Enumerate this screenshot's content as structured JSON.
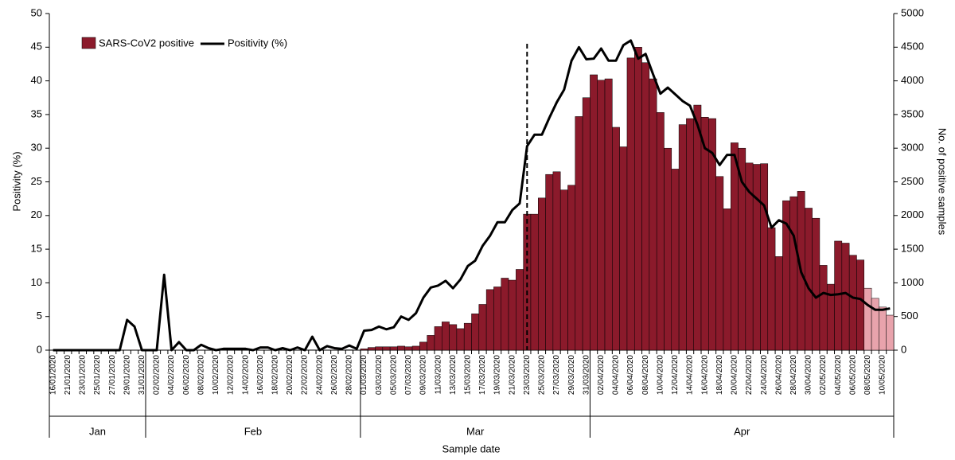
{
  "chart_data": {
    "type": "bar",
    "categories": [
      "16/01/2020",
      null,
      "21/01/2020",
      null,
      "23/01/2020",
      null,
      "25/01/2020",
      null,
      "27/01/2020",
      null,
      "29/01/2020",
      null,
      "31/01/2020",
      null,
      "02/02/2020",
      null,
      "04/02/2020",
      null,
      "06/02/2020",
      null,
      "08/02/2020",
      null,
      "10/02/2020",
      null,
      "12/02/2020",
      null,
      "14/02/2020",
      null,
      "16/02/2020",
      null,
      "18/02/2020",
      null,
      "20/02/2020",
      null,
      "22/02/2020",
      null,
      "24/02/2020",
      null,
      "26/02/2020",
      null,
      "28/02/2020",
      null,
      "01/03/2020",
      null,
      "03/03/2020",
      null,
      "05/03/2020",
      null,
      "07/03/2020",
      null,
      "09/03/2020",
      null,
      "11/03/2020",
      null,
      "13/03/2020",
      null,
      "15/03/2020",
      null,
      "17/03/2020",
      null,
      "19/03/2020",
      null,
      "21/03/2020",
      null,
      "23/03/2020",
      null,
      "25/03/2020",
      null,
      "27/03/2020",
      null,
      "29/03/2020",
      null,
      "31/03/2020",
      null,
      "02/04/2020",
      null,
      "04/04/2020",
      null,
      "06/04/2020",
      null,
      "08/04/2020",
      null,
      "10/04/2020",
      null,
      "12/04/2020",
      null,
      "14/04/2020",
      null,
      "16/04/2020",
      null,
      "18/04/2020",
      null,
      "20/04/2020",
      null,
      "22/04/2020",
      null,
      "24/04/2020",
      null,
      "26/04/2020",
      null,
      "28/04/2020",
      null,
      "30/04/2020",
      null,
      "02/05/2020",
      null,
      "04/05/2020",
      null,
      "06/05/2020",
      null,
      "08/05/2020",
      null,
      "10/05/2020",
      null
    ],
    "month_groups": [
      "Jan",
      "Feb",
      "Mar",
      "Apr"
    ],
    "xlabel": "Sample date",
    "ylabel": "Positivity (%)",
    "y2label": "No. of positive samples",
    "ylim": [
      0,
      50
    ],
    "yticks": [
      0,
      5,
      10,
      15,
      20,
      25,
      30,
      35,
      40,
      45,
      50
    ],
    "y2lim": [
      0,
      5000
    ],
    "y2ticks": [
      0,
      500,
      1000,
      1500,
      2000,
      2500,
      3000,
      3500,
      4000,
      4500,
      5000
    ],
    "legend": "top-left",
    "vline": "23/03/2020",
    "series": [
      {
        "name": "SARS-CoV2 positive",
        "type": "bar",
        "axis": "y2",
        "color": "#8b1a2b",
        "highlight": {
          "from": "08/05/2020",
          "color": "#e8a3ac"
        },
        "values": [
          0,
          0,
          0,
          0,
          0,
          0,
          0,
          0,
          0,
          0,
          2,
          2,
          0,
          0,
          0,
          2,
          0,
          1,
          0,
          0,
          1,
          1,
          0,
          1,
          1,
          1,
          1,
          0,
          2,
          2,
          0,
          1,
          0,
          2,
          0,
          4,
          0,
          3,
          2,
          2,
          5,
          3,
          20,
          40,
          50,
          50,
          50,
          60,
          50,
          60,
          120,
          220,
          350,
          420,
          380,
          320,
          400,
          540,
          680,
          900,
          940,
          1070,
          1040,
          1200,
          2020,
          2020,
          2260,
          2610,
          2650,
          2380,
          2450,
          3470,
          3750,
          4090,
          4010,
          4030,
          3310,
          3020,
          4340,
          4500,
          4270,
          4030,
          3530,
          3000,
          2690,
          3350,
          3440,
          3640,
          3460,
          3440,
          2580,
          2100,
          3080,
          3000,
          2780,
          2760,
          2770,
          1820,
          1390,
          2220,
          2280,
          2360,
          2110,
          1960,
          1260,
          980,
          1620,
          1590,
          1410,
          1340,
          920,
          770,
          640,
          520
        ]
      },
      {
        "name": "Positivity (%)",
        "type": "line",
        "color": "#000000",
        "values": [
          0,
          0,
          0,
          0,
          0,
          0,
          0,
          0,
          0,
          0,
          4.5,
          3.5,
          0,
          0,
          0,
          11.2,
          0,
          1.2,
          0,
          0,
          0.8,
          0.3,
          0,
          0.2,
          0.2,
          0.2,
          0.2,
          0,
          0.4,
          0.4,
          0,
          0.3,
          0,
          0.4,
          0,
          2.0,
          0,
          0.6,
          0.3,
          0.2,
          0.7,
          0.2,
          2.9,
          3.0,
          3.5,
          3.1,
          3.4,
          5.0,
          4.5,
          5.5,
          7.8,
          9.3,
          9.6,
          10.3,
          9.2,
          10.5,
          12.5,
          13.3,
          15.5,
          17.0,
          19.0,
          19.0,
          20.8,
          21.8,
          30.3,
          32.0,
          32.0,
          34.5,
          36.8,
          38.7,
          43.0,
          45.0,
          43.2,
          43.3,
          44.8,
          43.0,
          43.0,
          45.3,
          46.0,
          43.3,
          44.0,
          41.0,
          38.1,
          39.0,
          38.0,
          37.0,
          36.3,
          33.5,
          30.0,
          29.3,
          27.5,
          29.0,
          29.0,
          25.0,
          23.5,
          22.5,
          21.5,
          18.2,
          19.3,
          18.8,
          17.0,
          11.6,
          9.2,
          7.8,
          8.5,
          8.2,
          8.3,
          8.5,
          7.8,
          7.6,
          6.7,
          6.0,
          6.0,
          6.2
        ]
      }
    ]
  }
}
